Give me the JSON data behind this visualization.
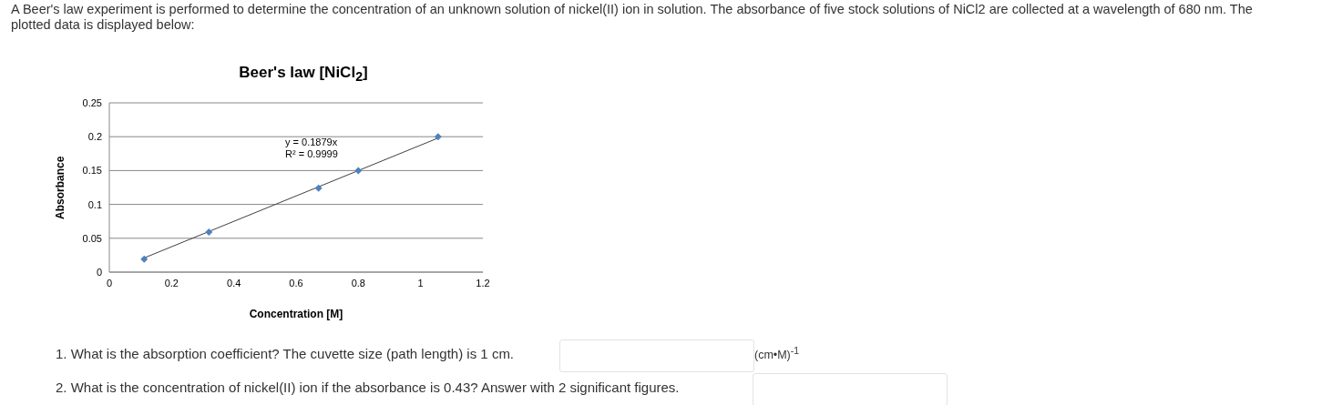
{
  "chart_data": {
    "type": "scatter",
    "title": "Beer's law [NiCl$_{2}$]",
    "xlabel": "Concentration  [M]",
    "ylabel": "Absorbance",
    "annotations": [
      "A Beer's law experiment is performed to determine the concentration of an unknown solution of nickel(II) ion in solution. The absorbance of five stock solutions of NiCl2 are collected at a wavelength of 680 nm.  The plotted data is displayed below:",
      "y = 0.1879x",
      "R² = 0.9999",
      "1. What is the absorption coefficient? The cuvette size (path length) is 1 cm.",
      "(cm•M)$^{-1}$",
      "2. What is the concentration of nickel(II) ion if the absorbance is 0.43?  Answer with 2 significant figures."
    ],
    "series": [
      {
        "color": "#4f81bd",
        "x": [
          0.112,
          0.32,
          0.672,
          0.8,
          1.056
        ],
        "values": [
          0.019,
          0.059,
          0.124,
          0.15,
          0.2
        ]
      },
      {
        "type": "line",
        "marker": "none",
        "color": "#404040",
        "x": [
          0.112,
          1.056
        ],
        "values": [
          0.021,
          0.198
        ]
      }
    ],
    "xlim": [
      0,
      1.2
    ],
    "xticks": [
      0,
      0.2,
      0.4,
      0.6,
      0.8,
      1,
      1.2
    ],
    "ylim": [
      0,
      0.25
    ],
    "yticks": [
      0,
      0.05,
      0.1,
      0.15,
      0.2,
      0.25
    ],
    "grid": "y",
    "legend": false,
    "marker": "diamond"
  }
}
